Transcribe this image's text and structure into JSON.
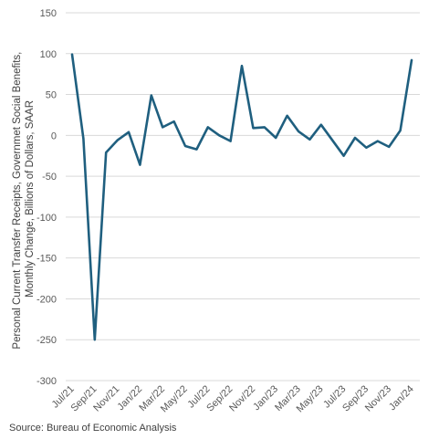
{
  "chart_data": {
    "type": "line",
    "title": "",
    "xlabel": "",
    "ylabel_lines": [
      "Personal Current Transfer Receipts, Governmet Social Benefits,",
      "Monthly Change, Billions of Dollars, SAAR"
    ],
    "ylim": [
      -300,
      150
    ],
    "yticks": [
      150,
      100,
      50,
      0,
      -50,
      -100,
      -150,
      -200,
      -250,
      -300
    ],
    "grid": true,
    "legend": "none",
    "line_color": "#1f5f7f",
    "tick_labels": [
      "Jul/21",
      "Sep/21",
      "Nov/21",
      "Jan/22",
      "Mar/22",
      "May/22",
      "Jul/22",
      "Sep/22",
      "Nov/22",
      "Jan/23",
      "Mar/23",
      "May/23",
      "Jul/23",
      "Sep/23",
      "Nov/23",
      "Jan/24"
    ],
    "x": [
      "Jul/21",
      "Aug/21",
      "Sep/21",
      "Oct/21",
      "Nov/21",
      "Dec/21",
      "Jan/22",
      "Feb/22",
      "Mar/22",
      "Apr/22",
      "May/22",
      "Jun/22",
      "Jul/22",
      "Aug/22",
      "Sep/22",
      "Oct/22",
      "Nov/22",
      "Dec/22",
      "Jan/23",
      "Feb/23",
      "Mar/23",
      "Apr/23",
      "May/23",
      "Jun/23",
      "Jul/23",
      "Aug/23",
      "Sep/23",
      "Oct/23",
      "Nov/23",
      "Dec/23",
      "Jan/24"
    ],
    "series": [
      {
        "values": [
          99,
          -4,
          -250,
          -21,
          -6,
          4,
          -36,
          49,
          10,
          17,
          -13,
          -17,
          10,
          0,
          -7,
          85,
          9,
          10,
          -3,
          24,
          5,
          -5,
          13,
          -6,
          -25,
          -3,
          -15,
          -7,
          -14,
          6,
          92
        ]
      }
    ]
  },
  "footer": {
    "source": "Source: Bureau of Economic Analysis"
  }
}
